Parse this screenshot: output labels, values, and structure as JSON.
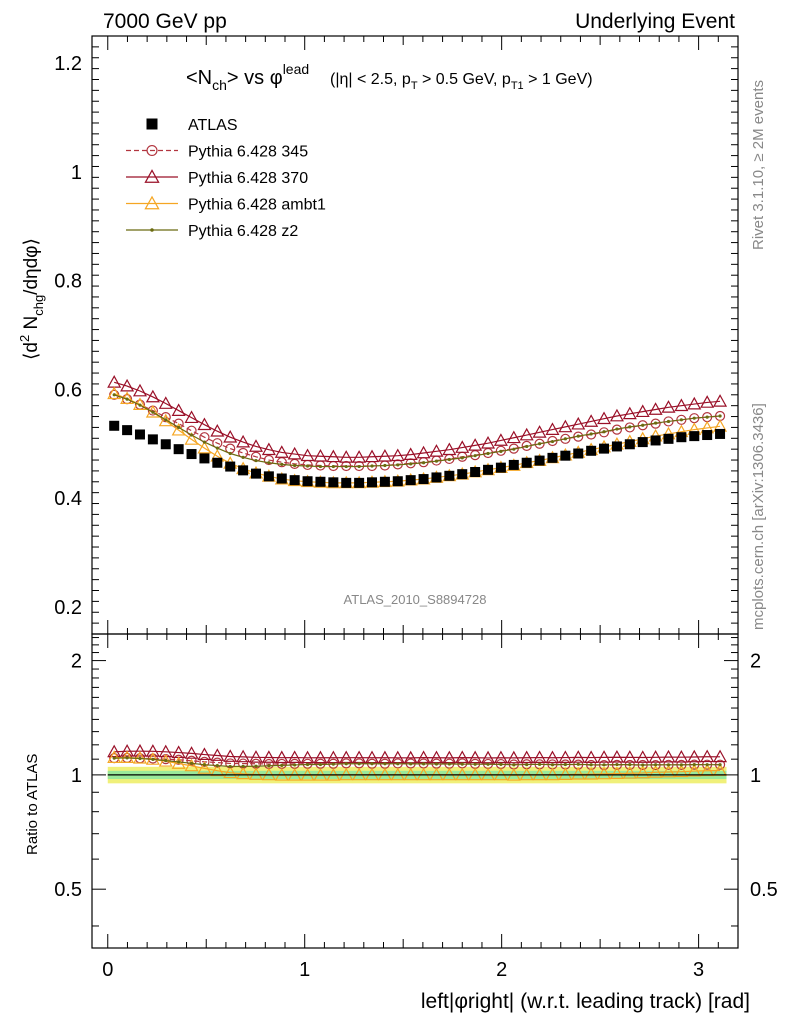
{
  "header": {
    "left": "7000 GeV pp",
    "right": "Underlying Event"
  },
  "side_labels": {
    "top": "Rivet 3.1.10, ≥ 2M events",
    "bottom": "mcplots.cern.ch [arXiv:1306.3436]"
  },
  "watermark": "ATLAS_2010_S8894728",
  "title": {
    "main": "<N",
    "main_sub": "ch",
    "main_rest": "> vs φ",
    "main_sup": "lead",
    "cuts_1": "(|η| < 2.5, p",
    "cuts_1_sub": "T",
    "cuts_2": " > 0.5 GeV, p",
    "cuts_2_sub": "T1",
    "cuts_3": " > 1 GeV)"
  },
  "axes": {
    "ylabel_top": "⟨d² N_chg/dηdφ⟩",
    "ylabel_top_parts": [
      "⟨d",
      "2",
      " N",
      "chg",
      "/dηdφ⟩"
    ],
    "ylabel_bottom": "Ratio to ATLAS",
    "xlabel": "left|φright| (w.r.t. leading track) [rad]",
    "x_ticks": [
      "0",
      "1",
      "2",
      "3"
    ],
    "y_ticks_top": [
      "0.2",
      "0.4",
      "0.6",
      "0.8",
      "1",
      "1.2"
    ],
    "y_ticks_bottom": [
      "0.5",
      "1",
      "2"
    ]
  },
  "legend": [
    {
      "label": "ATLAS",
      "color": "#000000",
      "marker": "square",
      "line": "none"
    },
    {
      "label": "Pythia 6.428 345",
      "color": "#b2353f",
      "marker": "circle-open",
      "line": "dashed"
    },
    {
      "label": "Pythia 6.428 370",
      "color": "#9a1028",
      "marker": "triangle-open",
      "line": "solid"
    },
    {
      "label": "Pythia 6.428 ambt1",
      "color": "#f5a623",
      "marker": "triangle-open",
      "line": "solid"
    },
    {
      "label": "Pythia 6.428 z2",
      "color": "#6b6b10",
      "marker": "dot",
      "line": "solid"
    }
  ],
  "chart_data": {
    "type": "line",
    "x_bin_width": 0.0654,
    "xlim": [
      -0.08,
      3.2
    ],
    "ylim": [
      0.15,
      1.25
    ],
    "ratio_ylim": [
      0.35,
      2.35
    ],
    "ratio_ylog": true,
    "grid": false,
    "legend_position": "top-left",
    "x": [
      0.0327,
      0.0982,
      0.1636,
      0.2291,
      0.2945,
      0.36,
      0.4254,
      0.4909,
      0.5563,
      0.6218,
      0.6872,
      0.7527,
      0.8181,
      0.8836,
      0.949,
      1.0145,
      1.0799,
      1.1454,
      1.2108,
      1.2763,
      1.3417,
      1.4072,
      1.4726,
      1.5381,
      1.6035,
      1.669,
      1.7344,
      1.7999,
      1.8653,
      1.9308,
      1.9962,
      2.0617,
      2.1271,
      2.1926,
      2.258,
      2.3235,
      2.3889,
      2.4544,
      2.5198,
      2.5853,
      2.6507,
      2.7162,
      2.7816,
      2.8471,
      2.9125,
      2.978,
      3.0434,
      3.1089
    ],
    "series": [
      {
        "name": "ATLAS",
        "color": "#000000",
        "marker": "square",
        "values": [
          0.533,
          0.525,
          0.517,
          0.508,
          0.499,
          0.49,
          0.481,
          0.473,
          0.465,
          0.458,
          0.451,
          0.445,
          0.44,
          0.436,
          0.433,
          0.431,
          0.43,
          0.429,
          0.428,
          0.428,
          0.429,
          0.43,
          0.431,
          0.433,
          0.435,
          0.438,
          0.441,
          0.444,
          0.448,
          0.452,
          0.456,
          0.461,
          0.465,
          0.469,
          0.474,
          0.478,
          0.482,
          0.487,
          0.491,
          0.495,
          0.499,
          0.503,
          0.506,
          0.509,
          0.512,
          0.514,
          0.516,
          0.518
        ]
      },
      {
        "name": "Pythia 6.428 345",
        "color": "#b2353f",
        "marker": "circle-open",
        "values": [
          0.59,
          0.582,
          0.572,
          0.561,
          0.549,
          0.537,
          0.524,
          0.512,
          0.501,
          0.491,
          0.483,
          0.476,
          0.47,
          0.466,
          0.463,
          0.461,
          0.46,
          0.459,
          0.459,
          0.459,
          0.459,
          0.46,
          0.462,
          0.464,
          0.466,
          0.469,
          0.472,
          0.476,
          0.479,
          0.483,
          0.487,
          0.491,
          0.496,
          0.5,
          0.505,
          0.509,
          0.513,
          0.517,
          0.521,
          0.526,
          0.53,
          0.534,
          0.537,
          0.541,
          0.544,
          0.547,
          0.549,
          0.551
        ]
      },
      {
        "name": "Pythia 6.428 370",
        "color": "#9a1028",
        "marker": "triangle-open",
        "values": [
          0.613,
          0.606,
          0.597,
          0.586,
          0.574,
          0.561,
          0.548,
          0.535,
          0.523,
          0.512,
          0.503,
          0.495,
          0.489,
          0.484,
          0.481,
          0.478,
          0.477,
          0.476,
          0.475,
          0.475,
          0.476,
          0.477,
          0.478,
          0.48,
          0.483,
          0.486,
          0.489,
          0.493,
          0.497,
          0.501,
          0.506,
          0.511,
          0.516,
          0.521,
          0.526,
          0.531,
          0.536,
          0.541,
          0.546,
          0.551,
          0.555,
          0.559,
          0.563,
          0.567,
          0.57,
          0.573,
          0.576,
          0.578
        ]
      },
      {
        "name": "Pythia 6.428 ambt1",
        "color": "#f5a623",
        "marker": "triangle-open",
        "values": [
          0.592,
          0.583,
          0.572,
          0.558,
          0.542,
          0.525,
          0.508,
          0.492,
          0.477,
          0.464,
          0.454,
          0.446,
          0.44,
          0.435,
          0.432,
          0.43,
          0.429,
          0.428,
          0.428,
          0.428,
          0.429,
          0.43,
          0.431,
          0.433,
          0.435,
          0.438,
          0.441,
          0.444,
          0.448,
          0.452,
          0.456,
          0.46,
          0.465,
          0.469,
          0.474,
          0.479,
          0.484,
          0.489,
          0.494,
          0.499,
          0.504,
          0.509,
          0.514,
          0.518,
          0.522,
          0.526,
          0.529,
          0.532
        ]
      },
      {
        "name": "Pythia 6.428 z2",
        "color": "#6b6b10",
        "marker": "dot",
        "values": [
          0.59,
          0.582,
          0.571,
          0.558,
          0.544,
          0.53,
          0.516,
          0.503,
          0.492,
          0.482,
          0.475,
          0.469,
          0.465,
          0.462,
          0.46,
          0.459,
          0.458,
          0.458,
          0.458,
          0.458,
          0.459,
          0.46,
          0.461,
          0.463,
          0.465,
          0.468,
          0.471,
          0.474,
          0.478,
          0.482,
          0.486,
          0.49,
          0.495,
          0.5,
          0.504,
          0.509,
          0.514,
          0.518,
          0.522,
          0.527,
          0.531,
          0.534,
          0.538,
          0.541,
          0.544,
          0.547,
          0.549,
          0.551
        ]
      }
    ],
    "ratio_band": {
      "colors": [
        "#f0f07a",
        "#9ae89a"
      ],
      "outer": 0.05,
      "inner": 0.025
    }
  }
}
